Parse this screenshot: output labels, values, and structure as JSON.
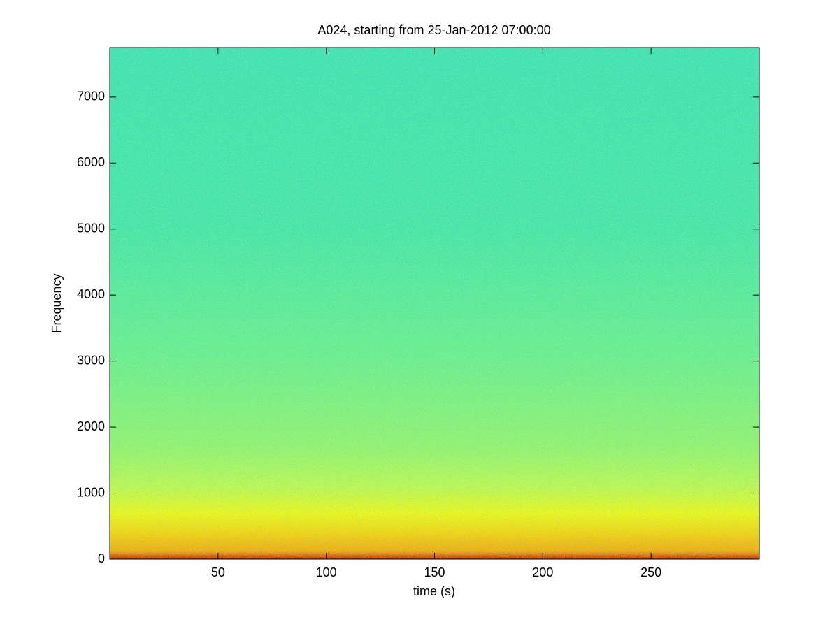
{
  "chart_data": {
    "type": "spectrogram",
    "title": "A024, starting from 25-Jan-2012 07:00:00",
    "x_label": "time (s)",
    "y_label": "Frequency",
    "xlim": [
      0,
      300
    ],
    "ylim": [
      0,
      7750
    ],
    "xticks": [
      50,
      100,
      150,
      200,
      250
    ],
    "yticks": [
      0,
      1000,
      2000,
      3000,
      4000,
      5000,
      6000,
      7000
    ],
    "grid": false
  }
}
